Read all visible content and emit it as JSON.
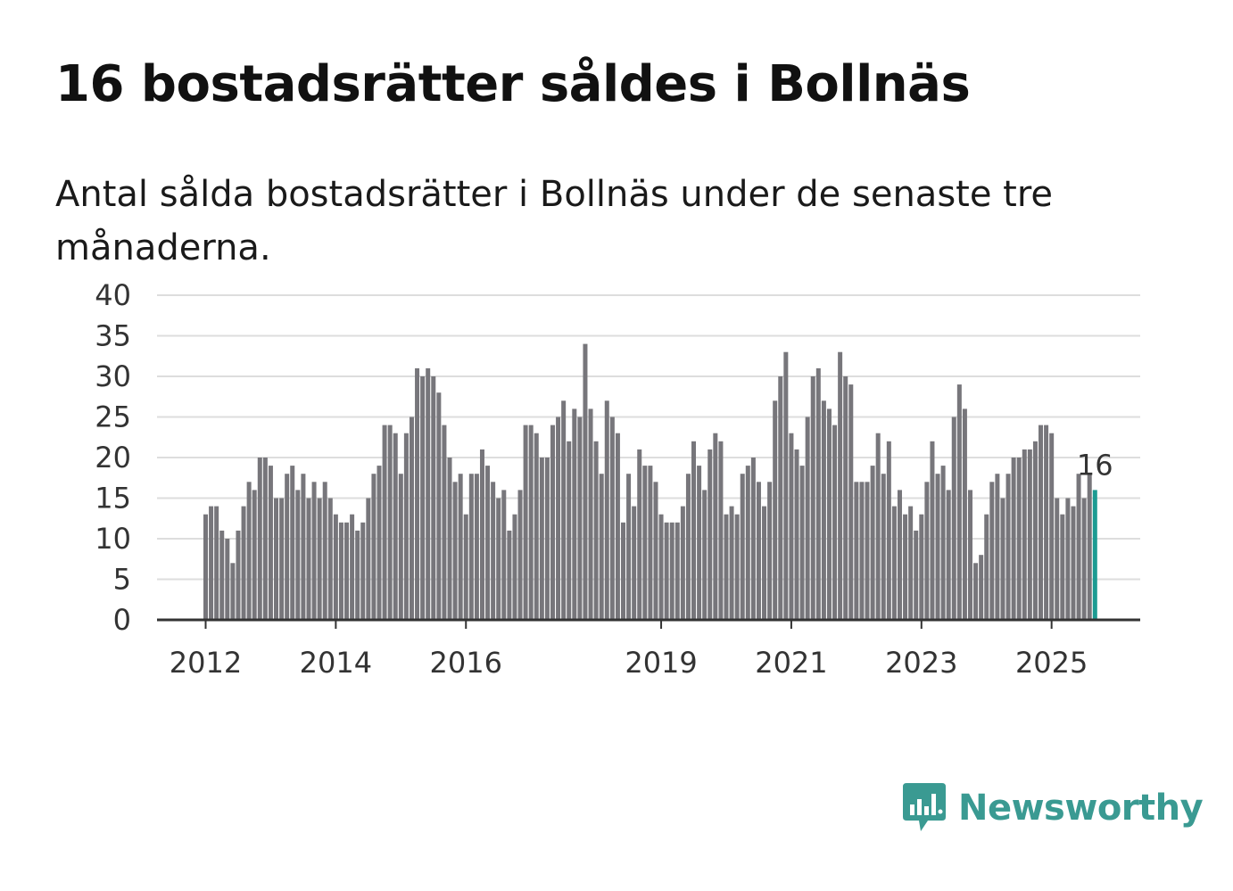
{
  "header": {
    "title": "16 bostadsrätter såldes i Bollnäs",
    "subtitle": "Antal sålda bostadsrätter i Bollnäs under de senaste tre månaderna."
  },
  "brand": {
    "name": "Newsworthy",
    "icon": "newsworthy-logo-icon"
  },
  "colors": {
    "bar": "#77767b",
    "highlight": "#1c9b92",
    "grid": "#dddddd",
    "axis": "#333333",
    "brand": "#3a9a92"
  },
  "chart_data": {
    "type": "bar",
    "title": "16 bostadsrätter såldes i Bollnäs",
    "subtitle": "Antal sålda bostadsrätter i Bollnäs under de senaste tre månaderna.",
    "xlabel": "",
    "ylabel": "",
    "ylim": [
      0,
      40
    ],
    "yticks": [
      0,
      5,
      10,
      15,
      20,
      25,
      30,
      35,
      40
    ],
    "xticks": [
      {
        "label": "2012",
        "index": 0
      },
      {
        "label": "2014",
        "index": 24
      },
      {
        "label": "2016",
        "index": 48
      },
      {
        "label": "2019",
        "index": 84
      },
      {
        "label": "2021",
        "index": 108
      },
      {
        "label": "2023",
        "index": 132
      },
      {
        "label": "2025",
        "index": 156
      }
    ],
    "grid": true,
    "start": "2012-01",
    "frequency": "monthly",
    "values": [
      13,
      14,
      14,
      11,
      10,
      7,
      11,
      14,
      17,
      16,
      20,
      20,
      19,
      15,
      15,
      18,
      19,
      16,
      18,
      15,
      17,
      15,
      17,
      15,
      13,
      12,
      12,
      13,
      11,
      12,
      15,
      18,
      19,
      24,
      24,
      23,
      18,
      23,
      25,
      31,
      30,
      31,
      30,
      28,
      24,
      20,
      17,
      18,
      13,
      18,
      18,
      21,
      19,
      17,
      15,
      16,
      11,
      13,
      16,
      24,
      24,
      23,
      20,
      20,
      24,
      25,
      27,
      22,
      26,
      25,
      34,
      26,
      22,
      18,
      27,
      25,
      23,
      12,
      18,
      14,
      21,
      19,
      19,
      17,
      13,
      12,
      12,
      12,
      14,
      18,
      22,
      19,
      16,
      21,
      23,
      22,
      13,
      14,
      13,
      18,
      19,
      20,
      17,
      14,
      17,
      27,
      30,
      33,
      23,
      21,
      19,
      25,
      30,
      31,
      27,
      26,
      24,
      33,
      30,
      29,
      17,
      17,
      17,
      19,
      23,
      18,
      22,
      14,
      16,
      13,
      14,
      11,
      13,
      17,
      22,
      18,
      19,
      16,
      25,
      29,
      26,
      16,
      7,
      8,
      13,
      17,
      18,
      15,
      18,
      20,
      20,
      21,
      21,
      22,
      24,
      24,
      23,
      15,
      13,
      15,
      14,
      18,
      15,
      18,
      16
    ],
    "highlight_index": 164,
    "annotation": {
      "label": "16",
      "index": 164
    }
  }
}
